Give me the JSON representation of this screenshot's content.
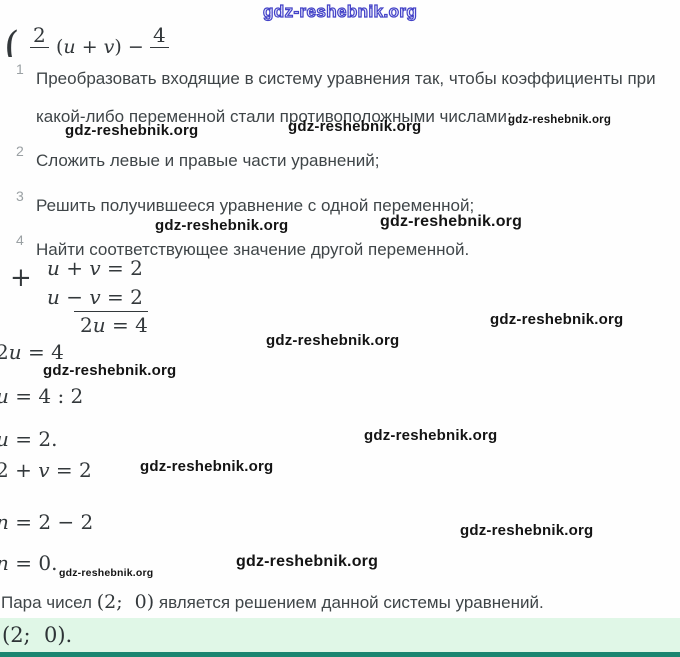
{
  "watermark": {
    "text": "gdz-reshebnik.org",
    "outline_color": "#4342c7"
  },
  "top_equation": {
    "brace": "(",
    "numerator_left": "2",
    "middle": "(u + v) −",
    "numerator_right": "4"
  },
  "steps": {
    "items": [
      {
        "num": "1",
        "text": "Преобразовать входящие в систему уравнения так, чтобы коэффициенты при какой-либо переменной стали противоположными числами;"
      },
      {
        "num": "2",
        "text": "Сложить левые и правые части уравнений;"
      },
      {
        "num": "3",
        "text": "Решить получившееся уравнение с одной переменной;"
      },
      {
        "num": "4",
        "text": "Найти соответствующее значение другой переменной."
      }
    ]
  },
  "math": {
    "plus": "+",
    "sum_line1": "u + v = 2",
    "sum_line2": "u − v = 2",
    "sum_result": "2u = 4",
    "line_2u4": "2u = 4",
    "line_u42": "u = 4 : 2",
    "line_u2": "u = 2.",
    "line_2v2": "2 + v = 2",
    "line_n22": "n = 2 − 2",
    "line_n0": "n = 0."
  },
  "conclusion": {
    "prefix": "Пара чисел ",
    "pair": "(2;  0)",
    "suffix": " является решением данной системы уравнений."
  },
  "answer": {
    "text": "(2;  0).",
    "highlight_color": "#e0f7e7",
    "bar_color": "#1a8570"
  }
}
